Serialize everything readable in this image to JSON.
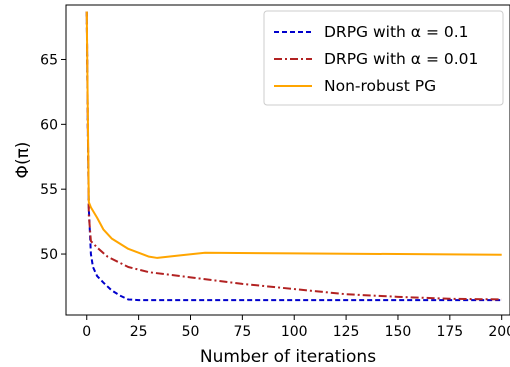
{
  "chart_data": {
    "type": "line",
    "title": "",
    "xlabel": "Number of iterations",
    "ylabel": "Φ(π)",
    "xlim": [
      -10,
      204
    ],
    "ylim": [
      45.3,
      69.2
    ],
    "xticks": [
      0,
      25,
      50,
      75,
      100,
      125,
      150,
      175,
      200
    ],
    "yticks": [
      50,
      55,
      60,
      65
    ],
    "grid": false,
    "legend_position": "top-right",
    "series": [
      {
        "name": "DRPG with α = 0.1",
        "color": "#0000cc",
        "dash": "dashed",
        "x": [
          0,
          0.5,
          1,
          2,
          3,
          5,
          8,
          12,
          16,
          20,
          25,
          30,
          50,
          100,
          150,
          200
        ],
        "y": [
          68.7,
          60.0,
          53.5,
          50.0,
          49.0,
          48.3,
          47.8,
          47.2,
          46.8,
          46.5,
          46.45,
          46.45,
          46.45,
          46.45,
          46.45,
          46.45
        ]
      },
      {
        "name": "DRPG with α = 0.01",
        "color": "#b22222",
        "dash": "dashdot",
        "x": [
          0,
          0.5,
          1,
          2,
          5,
          10,
          20,
          30,
          50,
          75,
          100,
          125,
          150,
          175,
          200
        ],
        "y": [
          68.7,
          60.0,
          53.0,
          51.0,
          50.5,
          49.8,
          49.0,
          48.6,
          48.2,
          47.7,
          47.3,
          46.9,
          46.7,
          46.55,
          46.5
        ]
      },
      {
        "name": "Non-robust PG",
        "color": "#ffa500",
        "dash": "solid",
        "x": [
          0,
          0.5,
          1,
          2,
          5,
          8,
          12,
          20,
          30,
          34,
          45,
          57,
          100,
          150,
          200
        ],
        "y": [
          68.7,
          61.0,
          54.0,
          53.6,
          52.8,
          51.9,
          51.2,
          50.4,
          49.8,
          49.7,
          49.9,
          50.1,
          50.05,
          50.0,
          49.95
        ]
      }
    ]
  }
}
